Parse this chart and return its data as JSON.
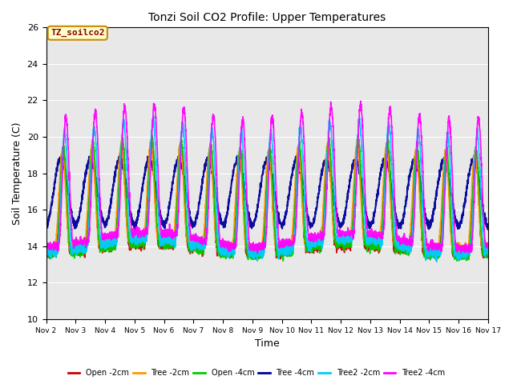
{
  "title": "Tonzi Soil CO2 Profile: Upper Temperatures",
  "xlabel": "Time",
  "ylabel": "Soil Temperature (C)",
  "ylim": [
    10,
    26
  ],
  "xlim": [
    0,
    15
  ],
  "watermark": "TZ_soilco2",
  "bg_color": "#e8e8e8",
  "series": {
    "Open -2cm": {
      "color": "#cc0000",
      "lw": 1.2
    },
    "Tree -2cm": {
      "color": "#ff9900",
      "lw": 1.2
    },
    "Open -4cm": {
      "color": "#00cc00",
      "lw": 1.2
    },
    "Tree -4cm": {
      "color": "#000099",
      "lw": 1.5
    },
    "Tree2 -2cm": {
      "color": "#00ccff",
      "lw": 1.2
    },
    "Tree2 -4cm": {
      "color": "#ff00ff",
      "lw": 1.2
    }
  },
  "xtick_labels": [
    "Nov 2",
    "Nov 3",
    "Nov 4",
    "Nov 5",
    "Nov 6",
    "Nov 7",
    "Nov 8",
    "Nov 9",
    "Nov 10",
    "Nov 11",
    "Nov 12",
    "Nov 13",
    "Nov 14",
    "Nov 15",
    "Nov 16",
    "Nov 17"
  ],
  "ytick_labels": [
    10,
    12,
    14,
    16,
    18,
    20,
    22,
    24,
    26
  ],
  "legend_names": [
    "Open -2cm",
    "Tree -2cm",
    "Open -4cm",
    "Tree -4cm",
    "Tree2 -2cm",
    "Tree2 -4cm"
  ]
}
